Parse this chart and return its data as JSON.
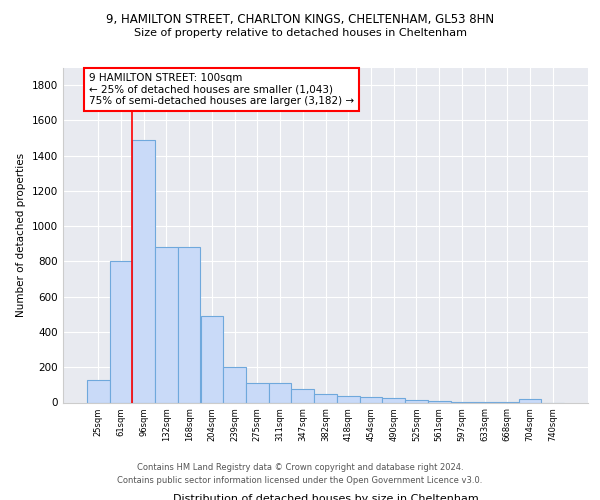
{
  "title_line1": "9, HAMILTON STREET, CHARLTON KINGS, CHELTENHAM, GL53 8HN",
  "title_line2": "Size of property relative to detached houses in Cheltenham",
  "xlabel": "Distribution of detached houses by size in Cheltenham",
  "ylabel": "Number of detached properties",
  "categories": [
    "25sqm",
    "61sqm",
    "96sqm",
    "132sqm",
    "168sqm",
    "204sqm",
    "239sqm",
    "275sqm",
    "311sqm",
    "347sqm",
    "382sqm",
    "418sqm",
    "454sqm",
    "490sqm",
    "525sqm",
    "561sqm",
    "597sqm",
    "633sqm",
    "668sqm",
    "704sqm",
    "740sqm"
  ],
  "bar_values": [
    130,
    800,
    1490,
    880,
    880,
    490,
    200,
    110,
    110,
    75,
    50,
    35,
    30,
    25,
    15,
    10,
    5,
    5,
    5,
    20,
    0
  ],
  "bar_color": "#c9daf8",
  "bar_edge_color": "#6fa8dc",
  "bar_edge_width": 0.8,
  "red_line_index": 2,
  "annotation_text": "9 HAMILTON STREET: 100sqm\n← 25% of detached houses are smaller (1,043)\n75% of semi-detached houses are larger (3,182) →",
  "annotation_box_color": "white",
  "annotation_box_edge_color": "red",
  "ylim": [
    0,
    1900
  ],
  "yticks": [
    0,
    200,
    400,
    600,
    800,
    1000,
    1200,
    1400,
    1600,
    1800
  ],
  "background_color": "#e8eaf0",
  "grid_color": "white",
  "footer_line1": "Contains HM Land Registry data © Crown copyright and database right 2024.",
  "footer_line2": "Contains public sector information licensed under the Open Government Licence v3.0."
}
